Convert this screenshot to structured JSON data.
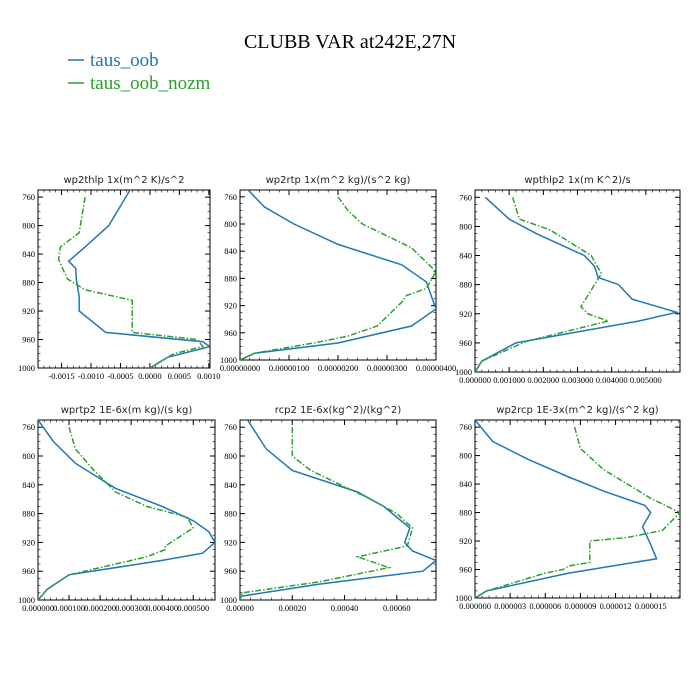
{
  "title": "CLUBB VAR at242E,27N",
  "colors": {
    "taus_oob": "#1f77b4",
    "taus_oob_nozm": "#2ca02c"
  },
  "legend": [
    {
      "name": "taus_oob",
      "color": "#1f77b4",
      "style": "solid"
    },
    {
      "name": "taus_oob_nozm",
      "color": "#2ca02c",
      "style": "dashdot"
    }
  ],
  "chart_data": [
    {
      "type": "line",
      "title": "wp2thlp   1x(m^2 K)/s^2",
      "xlim": [
        -0.0019,
        0.00102
      ],
      "ylim": [
        1000,
        750
      ],
      "xticks": [
        -0.0015,
        -0.001,
        -0.0005,
        0.0,
        0.0005,
        0.001
      ],
      "xtick_labels": [
        "-0.0015",
        "-0.0010",
        "-0.0005",
        "0.0000",
        "0.0005",
        "0.0010"
      ],
      "yticks": [
        760,
        800,
        840,
        880,
        920,
        960,
        1000
      ],
      "ytick_labels": [
        "760",
        "800",
        "840",
        "880",
        "920",
        "960",
        "1000"
      ],
      "series": [
        {
          "name": "taus_oob",
          "x": [
            -0.0003,
            -0.0007,
            -0.0011,
            -0.00138,
            -0.00126,
            -0.00125,
            -0.0012,
            -0.0012,
            -0.00075,
            0.0009,
            0.00102,
            0.0003,
            0.0
          ],
          "y": [
            745,
            800,
            830,
            850,
            860,
            875,
            900,
            920,
            950,
            963,
            970,
            985,
            1000
          ]
        },
        {
          "name": "taus_oob_nozm",
          "x": [
            -0.0011,
            -0.0012,
            -0.00152,
            -0.00155,
            -0.0014,
            -0.0011,
            -0.0003,
            -0.0003,
            0.0008,
            0.0009,
            0.0004,
            0.0
          ],
          "y": [
            760,
            810,
            830,
            848,
            875,
            890,
            905,
            950,
            960,
            970,
            980,
            1000
          ]
        }
      ]
    },
    {
      "type": "line",
      "title": "wp2rtp   1x(m^2 kg)/(s^2 kg)",
      "xlim": [
        0,
        4e-06
      ],
      "ylim": [
        1000,
        750
      ],
      "xticks": [
        0,
        1e-06,
        2e-06,
        3e-06,
        4e-06
      ],
      "xtick_labels": [
        "0.00000000",
        "0.00000100",
        "0.00000200",
        "0.00000300",
        "0.00000400"
      ],
      "yticks": [
        760,
        800,
        840,
        880,
        920,
        960,
        1000
      ],
      "ytick_labels": [
        "760",
        "800",
        "840",
        "880",
        "920",
        "960",
        "1000"
      ],
      "series": [
        {
          "name": "taus_oob",
          "x": [
            1e-07,
            5e-07,
            1.1e-06,
            2e-06,
            3.3e-06,
            3.8e-06,
            4e-06,
            3.5e-06,
            2e-06,
            3e-07,
            0.0
          ],
          "y": [
            745,
            775,
            800,
            830,
            860,
            885,
            925,
            950,
            975,
            990,
            1000
          ]
        },
        {
          "name": "taus_oob_nozm",
          "x": [
            2e-06,
            2.2e-06,
            2.5e-06,
            3.5e-06,
            4e-06,
            3.8e-06,
            3.4e-06,
            3.3e-06,
            2.8e-06,
            2.2e-06,
            1.5e-06,
            3e-07,
            0.0
          ],
          "y": [
            760,
            780,
            800,
            835,
            870,
            895,
            905,
            915,
            950,
            965,
            975,
            990,
            1000
          ]
        }
      ]
    },
    {
      "type": "line",
      "title": "wpthlp2   1x(m K^2)/s",
      "xlim": [
        0,
        0.006
      ],
      "ylim": [
        1000,
        750
      ],
      "xticks": [
        0,
        0.001,
        0.002,
        0.003,
        0.004,
        0.005
      ],
      "xtick_labels": [
        "0.000000",
        "0.001000",
        "0.002000",
        "0.003000",
        "0.004000",
        "0.005000"
      ],
      "yticks": [
        760,
        800,
        840,
        880,
        920,
        960,
        1000
      ],
      "ytick_labels": [
        "760",
        "800",
        "840",
        "880",
        "920",
        "960",
        "1000"
      ],
      "series": [
        {
          "name": "taus_oob",
          "x": [
            0.0003,
            0.001,
            0.0018,
            0.0032,
            0.0035,
            0.0036,
            0.0042,
            0.0046,
            0.0059,
            0.0048,
            0.0012,
            0.0002,
            0.0
          ],
          "y": [
            760,
            790,
            810,
            840,
            855,
            870,
            880,
            900,
            918,
            930,
            960,
            985,
            1000
          ]
        },
        {
          "name": "taus_oob_nozm",
          "x": [
            0.0011,
            0.0013,
            0.0022,
            0.0034,
            0.0037,
            0.0035,
            0.0033,
            0.0031,
            0.0033,
            0.0039,
            0.0015,
            0.0002,
            0.0
          ],
          "y": [
            760,
            790,
            805,
            840,
            865,
            880,
            895,
            910,
            920,
            930,
            958,
            985,
            1000
          ]
        }
      ]
    },
    {
      "type": "line",
      "title": "wprtp2   1E-6x(m kg)/(s kg)",
      "xlim": [
        0,
        0.00057
      ],
      "ylim": [
        1000,
        750
      ],
      "xticks": [
        0,
        0.0001,
        0.0002,
        0.0003,
        0.0004,
        0.0005
      ],
      "xtick_labels": [
        "0.000000",
        "0.000100",
        "0.000200",
        "0.000300",
        "0.000400",
        "0.000500"
      ],
      "yticks": [
        760,
        800,
        840,
        880,
        920,
        960,
        1000
      ],
      "ytick_labels": [
        "760",
        "800",
        "840",
        "880",
        "920",
        "960",
        "1000"
      ],
      "series": [
        {
          "name": "taus_oob",
          "x": [
            0.0,
            5e-05,
            0.00012,
            0.00025,
            0.0004,
            0.0005,
            0.00055,
            0.00057,
            0.00053,
            0.0004,
            0.0001,
            3e-05,
            0.0
          ],
          "y": [
            750,
            780,
            810,
            845,
            870,
            890,
            905,
            920,
            935,
            945,
            965,
            985,
            1000
          ]
        },
        {
          "name": "taus_oob_nozm",
          "x": [
            0.0001,
            0.00012,
            0.00018,
            0.00025,
            0.00035,
            0.00048,
            0.0005,
            0.00041,
            0.00041,
            0.00035,
            0.0001,
            3e-05,
            0.0
          ],
          "y": [
            760,
            790,
            820,
            850,
            870,
            885,
            900,
            925,
            930,
            940,
            965,
            985,
            1000
          ]
        }
      ]
    },
    {
      "type": "line",
      "title": "rcp2   1E-6x(kg^2)/(kg^2)",
      "xlim": [
        0,
        0.00075
      ],
      "ylim": [
        1000,
        750
      ],
      "xticks": [
        0,
        0.0002,
        0.0004,
        0.0006
      ],
      "xtick_labels": [
        "0.00000",
        "0.00020",
        "0.00040",
        "0.00060"
      ],
      "yticks": [
        760,
        800,
        840,
        880,
        920,
        960,
        1000
      ],
      "ytick_labels": [
        "760",
        "800",
        "840",
        "880",
        "920",
        "960",
        "1000"
      ],
      "series": [
        {
          "name": "taus_oob",
          "x": [
            2e-05,
            0.0001,
            0.0002,
            0.00045,
            0.00055,
            0.00065,
            0.00063,
            0.00066,
            0.00075,
            0.0007,
            0.0003,
            0.0,
            0.0
          ],
          "y": [
            745,
            790,
            820,
            850,
            870,
            900,
            920,
            932,
            945,
            960,
            978,
            995,
            1000
          ]
        },
        {
          "name": "taus_oob_nozm",
          "x": [
            0.0002,
            0.0002,
            0.00027,
            0.0005,
            0.0006,
            0.00066,
            0.00064,
            0.00045,
            0.00053,
            0.00057,
            0.0003,
            1e-05,
            0.0
          ],
          "y": [
            760,
            800,
            820,
            860,
            880,
            900,
            925,
            940,
            950,
            955,
            975,
            990,
            1000
          ]
        }
      ]
    },
    {
      "type": "line",
      "title": "wp2rcp   1E-3x(m^2 kg)/(s^2 kg)",
      "xlim": [
        0,
        1.75e-05
      ],
      "ylim": [
        1000,
        750
      ],
      "xticks": [
        0,
        3e-06,
        6e-06,
        9e-06,
        1.2e-05,
        1.5e-05
      ],
      "xtick_labels": [
        "0.000000",
        "0.000003",
        "0.000006",
        "0.000009",
        "0.000012",
        "0.000015"
      ],
      "yticks": [
        760,
        800,
        840,
        880,
        920,
        960,
        1000
      ],
      "ytick_labels": [
        "760",
        "800",
        "840",
        "880",
        "920",
        "960",
        "1000"
      ],
      "series": [
        {
          "name": "taus_oob",
          "x": [
            0.0,
            1.5e-06,
            4.5e-06,
            8e-06,
            1.1e-05,
            1.45e-05,
            1.5e-05,
            1.43e-05,
            1.5e-05,
            1.55e-05,
            8e-06,
            1e-06,
            0.0
          ],
          "y": [
            750,
            780,
            805,
            830,
            850,
            870,
            880,
            900,
            925,
            945,
            965,
            990,
            1000
          ]
        },
        {
          "name": "taus_oob_nozm",
          "x": [
            8.5e-06,
            9e-06,
            1.1e-05,
            1.5e-05,
            1.75e-05,
            1.6e-05,
            1.3e-05,
            9.8e-06,
            9.8e-06,
            8e-06,
            7.5e-06,
            6e-06,
            1e-06,
            0.0
          ],
          "y": [
            760,
            790,
            820,
            860,
            880,
            905,
            915,
            920,
            950,
            955,
            960,
            965,
            990,
            1000
          ]
        }
      ]
    }
  ]
}
